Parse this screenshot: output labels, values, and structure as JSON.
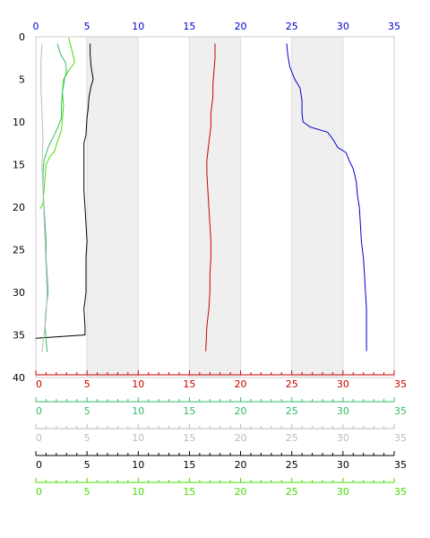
{
  "chart_data": {
    "type": "line",
    "title": "",
    "orientation": "profile",
    "y_axis": {
      "ylim": [
        0,
        40
      ],
      "inverted": true,
      "ticks": [
        "0",
        "5",
        "10",
        "15",
        "20",
        "25",
        "30",
        "35",
        "40"
      ]
    },
    "shaded_bands_x": [
      [
        5,
        10
      ],
      [
        15,
        20
      ],
      [
        25,
        30
      ]
    ],
    "top_axis": {
      "color": "#0000cc",
      "xlim": [
        0,
        35
      ],
      "ticks": [
        "0",
        "5",
        "10",
        "15",
        "20",
        "25",
        "30",
        "35"
      ]
    },
    "bottom_axes": [
      {
        "color": "#cc0000",
        "xlim": [
          0,
          35
        ],
        "ticks": [
          "0",
          "5",
          "10",
          "15",
          "20",
          "25",
          "30",
          "35"
        ]
      },
      {
        "color": "#33bb66",
        "xlim": [
          0,
          35
        ],
        "ticks": [
          "0",
          "5",
          "10",
          "15",
          "20",
          "25",
          "30",
          "35"
        ]
      },
      {
        "color": "#bbbbbb",
        "xlim": [
          0,
          35
        ],
        "ticks": [
          "0",
          "5",
          "10",
          "15",
          "20",
          "25",
          "30",
          "35"
        ]
      },
      {
        "color": "#000000",
        "xlim": [
          0,
          35
        ],
        "ticks": [
          "0",
          "5",
          "10",
          "15",
          "20",
          "25",
          "30",
          "35"
        ]
      },
      {
        "color": "#44dd00",
        "xlim": [
          0,
          35
        ],
        "ticks": [
          "0",
          "5",
          "10",
          "15",
          "20",
          "25",
          "30",
          "35"
        ]
      }
    ],
    "series": [
      {
        "color": "#0000cc",
        "points": [
          [
            24.5,
            0.8
          ],
          [
            24.6,
            2
          ],
          [
            24.8,
            3.5
          ],
          [
            25.3,
            5
          ],
          [
            25.8,
            6
          ],
          [
            26.0,
            7.5
          ],
          [
            26.0,
            9
          ],
          [
            26.1,
            10
          ],
          [
            26.8,
            10.6
          ],
          [
            28.5,
            11.2
          ],
          [
            29.0,
            12
          ],
          [
            29.5,
            13
          ],
          [
            30.3,
            13.6
          ],
          [
            30.6,
            14.5
          ],
          [
            31.0,
            15.5
          ],
          [
            31.3,
            17
          ],
          [
            31.4,
            18.5
          ],
          [
            31.6,
            20
          ],
          [
            31.7,
            22
          ],
          [
            31.8,
            24
          ],
          [
            32.0,
            26
          ],
          [
            32.1,
            28
          ],
          [
            32.2,
            30
          ],
          [
            32.3,
            32
          ],
          [
            32.3,
            34
          ],
          [
            32.3,
            36.9
          ]
        ]
      },
      {
        "color": "#cc0000",
        "points": [
          [
            17.5,
            0.8
          ],
          [
            17.5,
            2.5
          ],
          [
            17.4,
            4
          ],
          [
            17.3,
            5.5
          ],
          [
            17.3,
            7
          ],
          [
            17.1,
            9
          ],
          [
            17.1,
            10.5
          ],
          [
            16.9,
            12.5
          ],
          [
            16.7,
            14.5
          ],
          [
            16.7,
            16
          ],
          [
            16.8,
            18
          ],
          [
            16.9,
            20
          ],
          [
            17.0,
            22
          ],
          [
            17.1,
            24
          ],
          [
            17.1,
            26
          ],
          [
            17.0,
            28
          ],
          [
            17.0,
            30
          ],
          [
            16.9,
            32
          ],
          [
            16.7,
            34
          ],
          [
            16.6,
            36.9
          ]
        ]
      },
      {
        "color": "#000000",
        "points": [
          [
            5.3,
            0.8
          ],
          [
            5.3,
            2
          ],
          [
            5.4,
            3.5
          ],
          [
            5.6,
            5
          ],
          [
            5.4,
            5.8
          ],
          [
            5.2,
            7
          ],
          [
            5.1,
            8.5
          ],
          [
            5.0,
            9.5
          ],
          [
            4.9,
            11.5
          ],
          [
            4.7,
            12.5
          ],
          [
            4.7,
            14
          ],
          [
            4.7,
            16
          ],
          [
            4.7,
            18
          ],
          [
            4.8,
            20
          ],
          [
            4.9,
            22
          ],
          [
            5.0,
            24
          ],
          [
            4.9,
            26
          ],
          [
            4.9,
            28
          ],
          [
            4.9,
            30
          ],
          [
            4.7,
            32
          ],
          [
            4.8,
            34
          ],
          [
            4.8,
            35.0
          ],
          [
            0.0,
            35.4
          ]
        ]
      },
      {
        "color": "#44dd00",
        "points": [
          [
            3.2,
            0.1
          ],
          [
            3.5,
            1.5
          ],
          [
            3.8,
            3
          ],
          [
            3.2,
            4
          ],
          [
            2.7,
            5
          ],
          [
            2.6,
            6.5
          ],
          [
            2.7,
            8
          ],
          [
            2.6,
            9.5
          ],
          [
            2.5,
            11
          ],
          [
            2.2,
            12
          ],
          [
            1.8,
            13.5
          ],
          [
            1.4,
            14
          ],
          [
            1.0,
            15
          ],
          [
            0.9,
            16.5
          ],
          [
            0.8,
            18
          ],
          [
            0.7,
            19.6
          ],
          [
            0.4,
            20.2
          ]
        ]
      },
      {
        "color": "#33bb66",
        "points": [
          [
            2.1,
            0.8
          ],
          [
            2.4,
            2
          ],
          [
            2.9,
            3
          ],
          [
            3.0,
            4
          ],
          [
            2.8,
            5
          ],
          [
            2.6,
            6.5
          ],
          [
            2.5,
            8
          ],
          [
            2.5,
            9.5
          ],
          [
            2.2,
            10.5
          ],
          [
            1.8,
            11.5
          ],
          [
            1.2,
            13
          ],
          [
            0.8,
            14.5
          ],
          [
            0.7,
            16
          ],
          [
            0.7,
            17.5
          ],
          [
            0.8,
            20
          ],
          [
            0.9,
            22
          ],
          [
            1.0,
            24
          ],
          [
            1.0,
            26
          ],
          [
            1.1,
            28
          ],
          [
            1.2,
            30
          ],
          [
            1.0,
            32
          ],
          [
            0.9,
            34
          ],
          [
            1.0,
            35.5
          ],
          [
            1.1,
            37
          ]
        ]
      },
      {
        "color": "#bbbbbb",
        "points": [
          [
            0.6,
            0.8
          ],
          [
            0.5,
            3
          ],
          [
            0.5,
            6
          ],
          [
            0.6,
            9
          ],
          [
            0.7,
            12
          ],
          [
            0.6,
            15
          ],
          [
            0.7,
            18
          ],
          [
            0.8,
            21
          ],
          [
            0.9,
            24
          ],
          [
            1.0,
            27
          ],
          [
            1.1,
            30
          ],
          [
            1.0,
            33
          ],
          [
            0.8,
            35
          ],
          [
            0.6,
            37
          ]
        ]
      }
    ]
  }
}
